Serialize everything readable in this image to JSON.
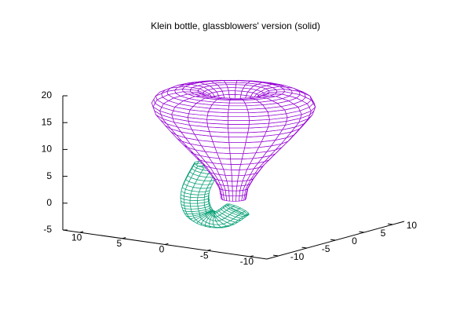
{
  "chart_data": {
    "type": "surface3d",
    "title": "Klein bottle, glassblowers' version (solid)",
    "xlim": [
      -12,
      12
    ],
    "xticks": [
      -10,
      -5,
      0,
      5,
      10
    ],
    "ylim": [
      -12,
      12
    ],
    "yticks": [
      -10,
      -5,
      0,
      5,
      10
    ],
    "zlim": [
      -5,
      20
    ],
    "zticks": [
      -5,
      0,
      5,
      10,
      15,
      20
    ],
    "colors": [
      "#9400d3",
      "#009e73"
    ]
  }
}
